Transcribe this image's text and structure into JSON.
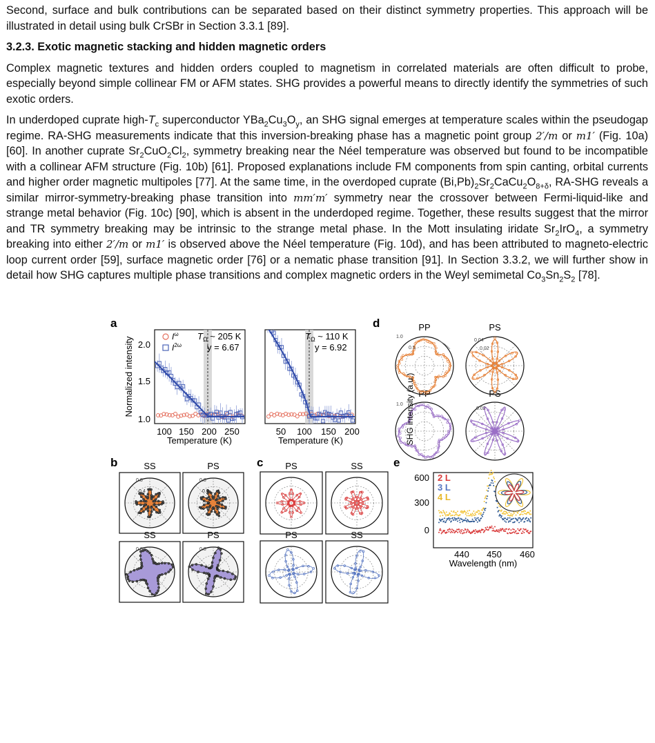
{
  "text": {
    "intro_line": "Second, surface and bulk contributions can be separated based on their distinct symmetry properties. This approach will be illustrated in detail using bulk CrSBr in Section 3.3.1 [89].",
    "heading": "3.2.3.  Exotic magnetic stacking and hidden magnetic orders",
    "para1": "Complex magnetic textures and hidden orders coupled to magnetism in correlated materials are often difficult to probe, especially beyond simple collinear FM or AFM states. SHG provides a powerful means to directly identify the symmetries of such exotic orders.",
    "p2": {
      "s1": "In underdoped cuprate high-",
      "s2": " superconductor YBa",
      "s3": ", an SHG signal emerges at temperature scales within the pseudogap regime. RA-SHG measurements indicate that this inversion-breaking phase has a magnetic point group ",
      "m1": "2′/m",
      "s4": " or ",
      "m2": "m1′",
      "s5": " (Fig. 10a) [60]. In another cuprate Sr",
      "s6": ", symmetry breaking near the Néel temperature was observed but found to be incompatible with a collinear AFM structure (Fig. 10b) [61]. Proposed explanations include FM components from spin canting, orbital currents and higher order magnetic multipoles [77]. At the same time, in the overdoped cuprate (Bi,Pb)",
      "s7": ", RA-SHG reveals a similar mirror-symmetry-breaking phase transition into ",
      "m3": "mm′m′",
      "s8": " symmetry near the crossover between Fermi-liquid-like and strange metal behavior (Fig. 10c) [90], which is absent in the underdoped regime. Together, these results suggest that the mirror and TR symmetry breaking may be intrinsic to the strange metal phase. In the Mott insulating iridate Sr",
      "s9": ", a symmetry breaking into either ",
      "m4": "2′/m",
      "s10": " or ",
      "m5": "m1′",
      "s11": " is observed above the Néel temperature (Fig. 10d), and has been attributed to magneto-electric loop current order [59], surface magnetic order [76] or a nematic phase transition [91]. In Section 3.3.2, we will further show in detail how SHG captures multiple phase transitions and complex magnetic orders in the Weyl semimetal Co",
      "s12": " [78]."
    }
  },
  "figure": {
    "a": {
      "label": "a",
      "legend": [
        "I",
        "I"
      ],
      "legend_sup": [
        "ω",
        "2ω"
      ],
      "ylabel": "Normalized intensity",
      "xlabel": "Temperature (K)",
      "yticks": [
        "2.0",
        "1.5",
        "1.0"
      ],
      "left": {
        "tc": "T",
        "tc_sub": "Ω",
        "tc_val": " ~ 205 K",
        "gamma": "y = 6.67",
        "xticks": [
          "100",
          "150",
          "200",
          "250"
        ]
      },
      "right": {
        "tc": "T",
        "tc_sub": "Ω",
        "tc_val": " ~ 110 K",
        "gamma": "y = 6.92",
        "xticks": [
          "50",
          "100",
          "150",
          "200"
        ]
      }
    },
    "b": {
      "label": "b",
      "titles": [
        "SS",
        "PS",
        "SS",
        "PS"
      ],
      "rings": [
        "0.8",
        "0.4",
        "0.8",
        "0.4",
        "0.8",
        "0.8"
      ]
    },
    "c": {
      "label": "c",
      "titles": [
        "PS",
        "SS",
        "PS",
        "SS"
      ]
    },
    "d": {
      "label": "d",
      "titles": [
        "PP",
        "PS",
        "PP",
        "PS"
      ],
      "rings": [
        "1.0",
        "0.5",
        "0.04",
        "0.02",
        "1.0",
        "0.02"
      ]
    },
    "e": {
      "label": "e",
      "ylabel": "SHG intensity (a.u.)",
      "xlabel": "Wavelength (nm)",
      "yticks": [
        "600",
        "300",
        "0"
      ],
      "xticks": [
        "440",
        "450",
        "460"
      ],
      "legend": [
        "2 L",
        "3 L",
        "4 L"
      ]
    }
  },
  "colors": {
    "orange": "#e6823a",
    "purple": "#9a6fc6",
    "red": "#d93a3a",
    "blue": "#5574c0",
    "gold": "#f2c337",
    "navy": "#2f5a93",
    "a_red": "#e46e5c",
    "a_blue": "#4b63b8"
  }
}
